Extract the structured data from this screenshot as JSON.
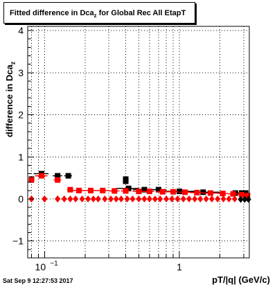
{
  "title": {
    "main": "Fitted difference in Dca",
    "sub": "z",
    "rest": " for Global Rec All EtapT"
  },
  "footer": {
    "timestamp": "Sat Sep  9 12:27:53 2017"
  },
  "colors": {
    "series_black": "#000000",
    "series_red": "#ff0000",
    "grid": "#000000",
    "background": "#ffffff"
  },
  "chart_data": {
    "type": "scatter",
    "title": "Fitted difference in Dca_z for Global Rec All EtapT",
    "xlabel": "pT/|q| (GeV/c)",
    "ylabel": "difference in Dca_z",
    "x_scale": "log",
    "xlim": [
      0.075,
      3.3
    ],
    "ylim": [
      -1.4,
      4.1
    ],
    "grid": true,
    "y_ticks": [
      -1,
      0,
      1,
      2,
      3,
      4
    ],
    "x_tick_labels": [
      {
        "value": 0.1,
        "base": "10",
        "exp": "−1"
      },
      {
        "value": 1,
        "label": "1"
      }
    ],
    "series": [
      {
        "name": "",
        "color": "#000000",
        "marker": "square",
        "points": [
          {
            "x": 0.08,
            "y": 0.47,
            "xerr": 0.004
          },
          {
            "x": 0.095,
            "y": 0.6,
            "xerr": 0.012
          },
          {
            "x": 0.125,
            "y": 0.55,
            "xerr": 0.01
          },
          {
            "x": 0.15,
            "y": 0.55,
            "xerr": 0.01
          },
          {
            "x": 0.4,
            "y": 0.47,
            "xerr": 0.01
          },
          {
            "x": 0.4,
            "y": 0.42,
            "xerr": 0.01
          },
          {
            "x": 0.42,
            "y": 0.25,
            "xerr": 0.08
          },
          {
            "x": 0.55,
            "y": 0.22,
            "xerr": 0.1
          },
          {
            "x": 0.7,
            "y": 0.22,
            "xerr": 0.1
          },
          {
            "x": 1.0,
            "y": 0.18,
            "xerr": 0.3
          },
          {
            "x": 1.5,
            "y": 0.16,
            "xerr": 0.5
          },
          {
            "x": 2.6,
            "y": 0.14,
            "xerr": 0.2
          },
          {
            "x": 2.9,
            "y": 0.14,
            "xerr": 0.2
          },
          {
            "x": 3.1,
            "y": 0.14,
            "xerr": 0.15
          }
        ]
      },
      {
        "name": "",
        "color": "#ff0000",
        "marker": "square",
        "points": [
          {
            "x": 0.08,
            "y": 0.45,
            "xerr": 0.004
          },
          {
            "x": 0.095,
            "y": 0.55,
            "xerr": 0.01
          },
          {
            "x": 0.125,
            "y": 0.45,
            "xerr": 0.008
          },
          {
            "x": 0.155,
            "y": 0.22,
            "xerr": 0.008
          },
          {
            "x": 0.18,
            "y": 0.2,
            "xerr": 0.02
          },
          {
            "x": 0.22,
            "y": 0.2,
            "xerr": 0.02
          },
          {
            "x": 0.27,
            "y": 0.2,
            "xerr": 0.03
          },
          {
            "x": 0.33,
            "y": 0.19,
            "xerr": 0.03
          },
          {
            "x": 0.4,
            "y": 0.19,
            "xerr": 0.03
          },
          {
            "x": 0.5,
            "y": 0.18,
            "xerr": 0.05
          },
          {
            "x": 0.6,
            "y": 0.18,
            "xerr": 0.05
          },
          {
            "x": 0.75,
            "y": 0.17,
            "xerr": 0.08
          },
          {
            "x": 0.9,
            "y": 0.17,
            "xerr": 0.08
          },
          {
            "x": 1.1,
            "y": 0.16,
            "xerr": 0.1
          },
          {
            "x": 1.35,
            "y": 0.15,
            "xerr": 0.15
          },
          {
            "x": 1.7,
            "y": 0.14,
            "xerr": 0.2
          },
          {
            "x": 2.1,
            "y": 0.13,
            "xerr": 0.2
          },
          {
            "x": 2.5,
            "y": 0.12,
            "xerr": 0.2
          },
          {
            "x": 2.9,
            "y": 0.1,
            "xerr": 0.2
          },
          {
            "x": 3.2,
            "y": 0.08,
            "xerr": 0.1
          }
        ]
      },
      {
        "name": "",
        "color": "#000000",
        "marker": "diamond",
        "points": [
          {
            "x": 0.08,
            "y": 0.0
          },
          {
            "x": 0.1,
            "y": 0.0
          },
          {
            "x": 0.125,
            "y": 0.0
          },
          {
            "x": 2.85,
            "y": -0.01
          },
          {
            "x": 3.05,
            "y": -0.01
          },
          {
            "x": 3.25,
            "y": -0.01
          }
        ]
      },
      {
        "name": "",
        "color": "#ff0000",
        "marker": "diamond",
        "points": [
          {
            "x": 0.08,
            "y": 0.0
          },
          {
            "x": 0.1,
            "y": 0.0
          },
          {
            "x": 0.125,
            "y": 0.0
          },
          {
            "x": 0.14,
            "y": 0.0
          },
          {
            "x": 0.155,
            "y": 0.0
          },
          {
            "x": 0.17,
            "y": 0.0
          },
          {
            "x": 0.19,
            "y": 0.0
          },
          {
            "x": 0.21,
            "y": 0.0
          },
          {
            "x": 0.23,
            "y": 0.0
          },
          {
            "x": 0.25,
            "y": 0.0
          },
          {
            "x": 0.28,
            "y": 0.0
          },
          {
            "x": 0.31,
            "y": 0.0
          },
          {
            "x": 0.34,
            "y": 0.0
          },
          {
            "x": 0.37,
            "y": 0.0
          },
          {
            "x": 0.41,
            "y": 0.0
          },
          {
            "x": 0.45,
            "y": 0.0
          },
          {
            "x": 0.5,
            "y": 0.0
          },
          {
            "x": 0.55,
            "y": 0.0
          },
          {
            "x": 0.6,
            "y": 0.0
          },
          {
            "x": 0.66,
            "y": 0.0
          },
          {
            "x": 0.72,
            "y": 0.0
          },
          {
            "x": 0.8,
            "y": 0.0
          },
          {
            "x": 0.88,
            "y": 0.0
          },
          {
            "x": 0.97,
            "y": 0.0
          },
          {
            "x": 1.07,
            "y": 0.0
          },
          {
            "x": 1.18,
            "y": 0.0
          },
          {
            "x": 1.3,
            "y": 0.0
          },
          {
            "x": 1.43,
            "y": 0.0
          },
          {
            "x": 1.58,
            "y": 0.0
          },
          {
            "x": 1.74,
            "y": 0.0
          },
          {
            "x": 1.92,
            "y": 0.0
          },
          {
            "x": 2.12,
            "y": 0.0
          },
          {
            "x": 2.33,
            "y": 0.0
          },
          {
            "x": 2.57,
            "y": 0.0
          }
        ]
      }
    ]
  }
}
